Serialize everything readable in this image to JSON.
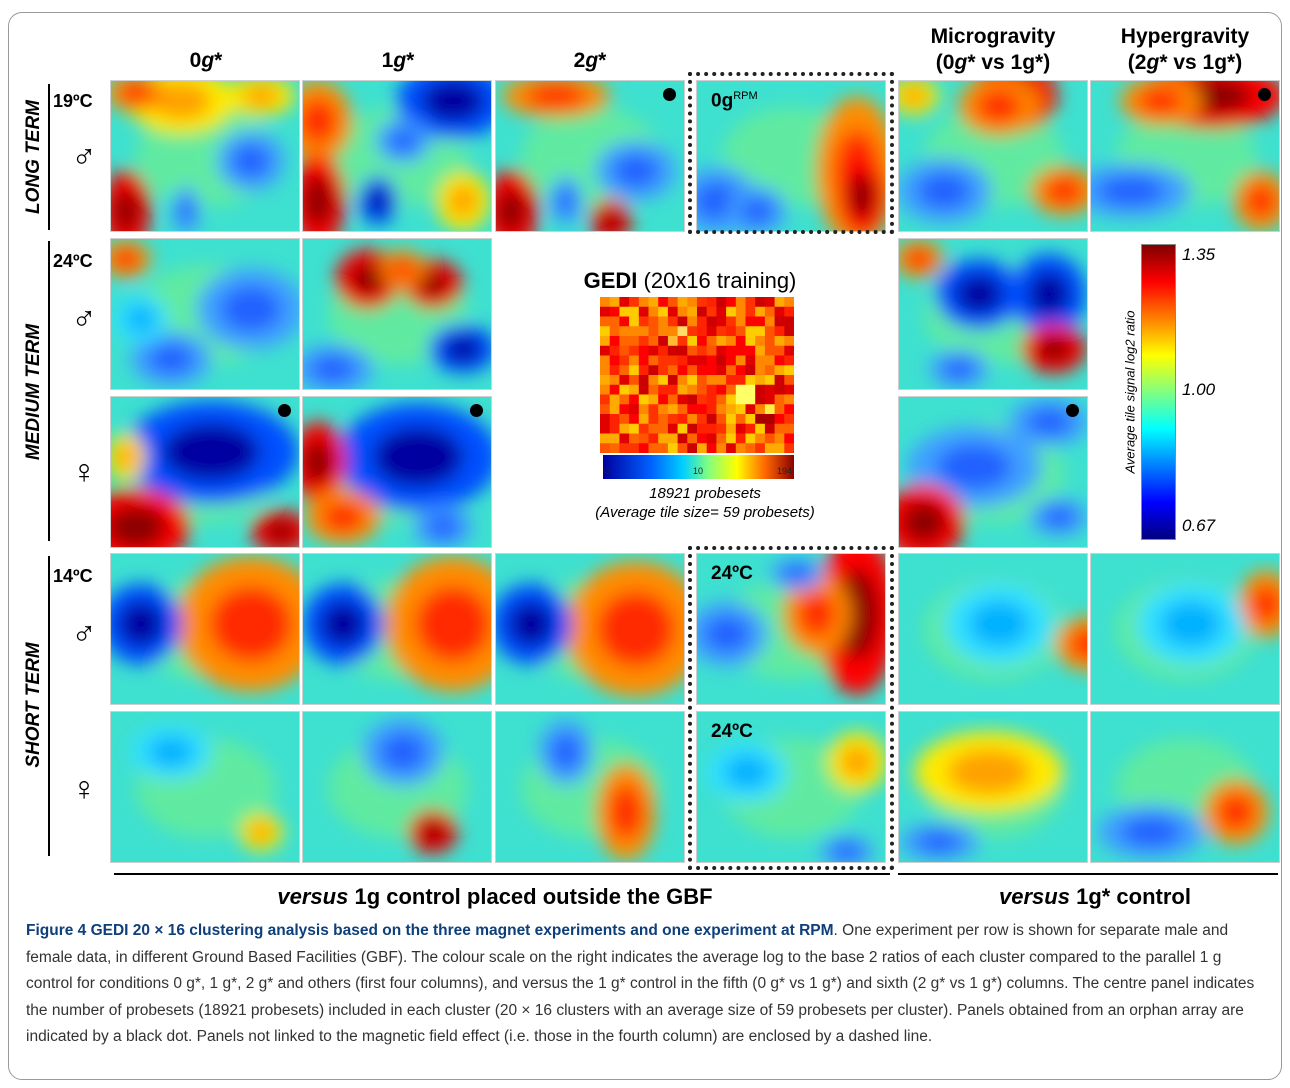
{
  "columns": [
    {
      "lines": [
        {
          "pre": "0",
          "it": "g",
          "post": "*"
        }
      ]
    },
    {
      "lines": [
        {
          "pre": "1",
          "it": "g",
          "post": "*"
        }
      ]
    },
    {
      "lines": [
        {
          "pre": "2",
          "it": "g",
          "post": "*"
        }
      ]
    },
    {
      "lines": [
        {
          "pre": "Microgravity",
          "it": "",
          "post": ""
        },
        {
          "pre": "(0",
          "it": "g",
          "post": "* vs 1g*)"
        }
      ]
    },
    {
      "lines": [
        {
          "pre": "Hypergravity",
          "it": "",
          "post": ""
        },
        {
          "pre": "(2",
          "it": "g",
          "post": "* vs 1g*)"
        }
      ]
    }
  ],
  "row_groups": [
    "LONG TERM",
    "MEDIUM TERM",
    "SHORT TERM"
  ],
  "rows": [
    {
      "temp": "19ºC",
      "sex": "♂"
    },
    {
      "temp": "24ºC",
      "sex": "♂"
    },
    {
      "temp": "",
      "sex": "♀"
    },
    {
      "temp": "14ºC",
      "sex": "♂"
    },
    {
      "temp": "",
      "sex": "♀"
    }
  ],
  "panel_labels": {
    "rpm_main": "0g",
    "rpm_sup": "RPM",
    "short_male": "24ºC",
    "short_female": "24ºC"
  },
  "gedi": {
    "title_bold": "GEDI",
    "title_rest": " (20x16 training)",
    "scale_ticks": [
      "0",
      "10",
      "194"
    ],
    "probesets": "18921 probesets",
    "tile_size": "(Average tile size= 59 probesets)"
  },
  "colorbar": {
    "max": "1.35",
    "mid": "1.00",
    "min": "0.67",
    "axis_label": "Average tile signal log2 ratio"
  },
  "bottom_labels": {
    "left_it": "versus",
    "left_rest": " 1g control placed outside the GBF",
    "right_it": "versus",
    "right_rest": " 1g* control"
  },
  "caption": {
    "title": "Figure 4 GEDI 20 × 16 clustering analysis based on the three magnet experiments and one experiment at RPM",
    "text": ". One experiment per row is shown for separate male and female data, in different Ground Based Facilities (GBF). The colour scale on the right indicates the average log to the base 2 ratios of each cluster compared to the parallel 1 g control for conditions 0 g*, 1 g*, 2 g* and others (first four columns), and versus the 1 g* control in the fifth (0 g* vs 1 g*) and sixth (2 g* vs 1 g*) columns. The centre panel indicates the number of probesets (18921 probesets) included in each cluster (20 × 16 clusters with an average size of 59 probesets per cluster). Panels obtained from an orphan array are indicated by a black dot. Panels not linked to the magnetic field effect (i.e. those in the fourth column) are enclosed by a dashed line."
  },
  "colors": {
    "caption_title": "#0f3f7a",
    "caption_text": "#333333",
    "dot": "#000000"
  }
}
